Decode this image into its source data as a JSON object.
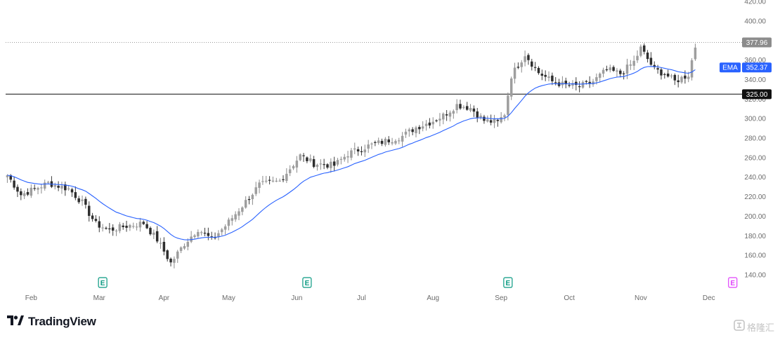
{
  "chart_data": {
    "type": "candlestick",
    "title": "",
    "xlabel": "",
    "ylabel": "",
    "ylim": [
      140,
      420
    ],
    "y_ticks": [
      "140.00",
      "160.00",
      "180.00",
      "200.00",
      "220.00",
      "240.00",
      "260.00",
      "280.00",
      "300.00",
      "320.00",
      "340.00",
      "360.00",
      "380.00",
      "400.00",
      "420.00"
    ],
    "x_ticks": [
      {
        "label": "Feb",
        "index": 7
      },
      {
        "label": "Mar",
        "index": 27
      },
      {
        "label": "Apr",
        "index": 46
      },
      {
        "label": "May",
        "index": 65
      },
      {
        "label": "Jun",
        "index": 85
      },
      {
        "label": "Jul",
        "index": 104
      },
      {
        "label": "Aug",
        "index": 125
      },
      {
        "label": "Sep",
        "index": 145
      },
      {
        "label": "Oct",
        "index": 165
      },
      {
        "label": "Nov",
        "index": 186
      },
      {
        "label": "Dec",
        "index": 206
      }
    ],
    "bar_count": 215,
    "path": [
      [
        0,
        242
      ],
      [
        4,
        222
      ],
      [
        8,
        228
      ],
      [
        12,
        234
      ],
      [
        18,
        228
      ],
      [
        22,
        214
      ],
      [
        26,
        192
      ],
      [
        30,
        186
      ],
      [
        35,
        190
      ],
      [
        40,
        193
      ],
      [
        44,
        176
      ],
      [
        48,
        152
      ],
      [
        52,
        172
      ],
      [
        56,
        187
      ],
      [
        60,
        176
      ],
      [
        64,
        190
      ],
      [
        70,
        215
      ],
      [
        74,
        232
      ],
      [
        80,
        236
      ],
      [
        86,
        262
      ],
      [
        90,
        254
      ],
      [
        96,
        252
      ],
      [
        100,
        264
      ],
      [
        106,
        272
      ],
      [
        112,
        278
      ],
      [
        116,
        282
      ],
      [
        120,
        291
      ],
      [
        124,
        296
      ],
      [
        128,
        303
      ],
      [
        132,
        314
      ],
      [
        136,
        311
      ],
      [
        140,
        298
      ],
      [
        144,
        296
      ],
      [
        146,
        305
      ],
      [
        148,
        344
      ],
      [
        152,
        366
      ],
      [
        156,
        347
      ],
      [
        160,
        338
      ],
      [
        164,
        334
      ],
      [
        168,
        333
      ],
      [
        172,
        338
      ],
      [
        176,
        350
      ],
      [
        180,
        346
      ],
      [
        184,
        358
      ],
      [
        186,
        372
      ],
      [
        190,
        350
      ],
      [
        193,
        346
      ],
      [
        196,
        338
      ],
      [
        200,
        345
      ],
      [
        202,
        374
      ]
    ],
    "ema": {
      "label": "EMA",
      "value": "352.37",
      "color": "#2962ff",
      "period": 20
    },
    "last_price": {
      "value": "377.96",
      "price": 377.96
    },
    "horizontal_line": {
      "value": "325.00",
      "price": 325.0
    },
    "earnings_markers": [
      {
        "label": "E",
        "index": 28,
        "color": "#089981"
      },
      {
        "label": "E",
        "index": 88,
        "color": "#089981"
      },
      {
        "label": "E",
        "index": 147,
        "color": "#089981"
      },
      {
        "label": "E",
        "index": 213,
        "color": "#e040fb"
      }
    ]
  },
  "brand": {
    "name": "TradingView",
    "logo_icon": "tradingview-logo-icon"
  },
  "watermark": {
    "icon": "gelonghui-logo-icon",
    "text": "格隆汇"
  }
}
